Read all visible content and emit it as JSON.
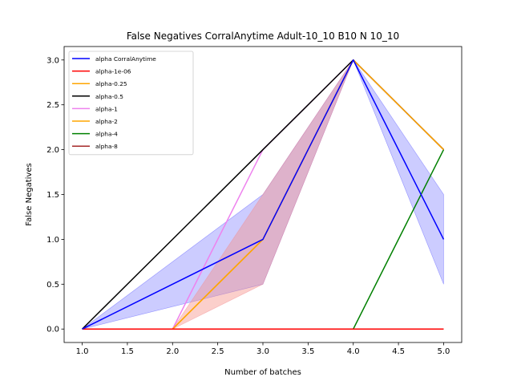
{
  "chart_data": {
    "type": "line",
    "title": "False Negatives CorralAnytime Adult-10_10 B10 N 10_10",
    "xlabel": "Number of batches",
    "ylabel": "False Negatives",
    "xlim": [
      0.8,
      5.2
    ],
    "ylim": [
      -0.15,
      3.15
    ],
    "xticks": [
      1.0,
      1.5,
      2.0,
      2.5,
      3.0,
      3.5,
      4.0,
      4.5,
      5.0
    ],
    "xtick_labels": [
      "1.0",
      "1.5",
      "2.0",
      "2.5",
      "3.0",
      "3.5",
      "4.0",
      "4.5",
      "5.0"
    ],
    "yticks": [
      0.0,
      0.5,
      1.0,
      1.5,
      2.0,
      2.5,
      3.0
    ],
    "ytick_labels": [
      "0.0",
      "0.5",
      "1.0",
      "1.5",
      "2.0",
      "2.5",
      "3.0"
    ],
    "grid": false,
    "legend_position": "top-left",
    "x": [
      1,
      2,
      3,
      4,
      5
    ],
    "bands": [
      {
        "color": "#0000ff",
        "opacity": 0.2,
        "x": [
          1,
          3,
          4,
          5
        ],
        "lower": [
          0,
          0.5,
          3,
          0.5
        ],
        "upper": [
          0,
          1.5,
          3,
          1.5
        ]
      },
      {
        "color": "#ffa500",
        "opacity": 0.25,
        "x": [
          1,
          2,
          3,
          4,
          5
        ],
        "lower": [
          0,
          0,
          0.5,
          3,
          2
        ],
        "upper": [
          0,
          0,
          1.5,
          3,
          2
        ]
      },
      {
        "color": "#ee82ee",
        "opacity": 0.25,
        "x": [
          1,
          2,
          3,
          4,
          5
        ],
        "lower": [
          0,
          0,
          0.5,
          3,
          2
        ],
        "upper": [
          0,
          0,
          1.5,
          3,
          2
        ]
      }
    ],
    "series": [
      {
        "name": "alpha CorralAnytime",
        "color": "#0000ff",
        "values": [
          0,
          null,
          1,
          3,
          1
        ]
      },
      {
        "name": "alpha-1e-06",
        "color": "#ff0000",
        "values": [
          0,
          0,
          0,
          0,
          0
        ]
      },
      {
        "name": "alpha-0.25",
        "color": "#ffa500",
        "values": [
          0,
          0,
          1,
          3,
          2
        ]
      },
      {
        "name": "alpha-0.5",
        "color": "#000000",
        "values": [
          0,
          null,
          2,
          3,
          2
        ]
      },
      {
        "name": "alpha-1",
        "color": "#ee82ee",
        "values": [
          0,
          0,
          2,
          3,
          2
        ]
      },
      {
        "name": "alpha-2",
        "color": "#ffa500",
        "values": [
          0,
          0,
          1,
          3,
          2
        ]
      },
      {
        "name": "alpha-4",
        "color": "#008000",
        "values": [
          0,
          0,
          0,
          0,
          2
        ]
      },
      {
        "name": "alpha-8",
        "color": "#a52a2a",
        "values": [
          0,
          0,
          0,
          0,
          0
        ]
      }
    ]
  }
}
